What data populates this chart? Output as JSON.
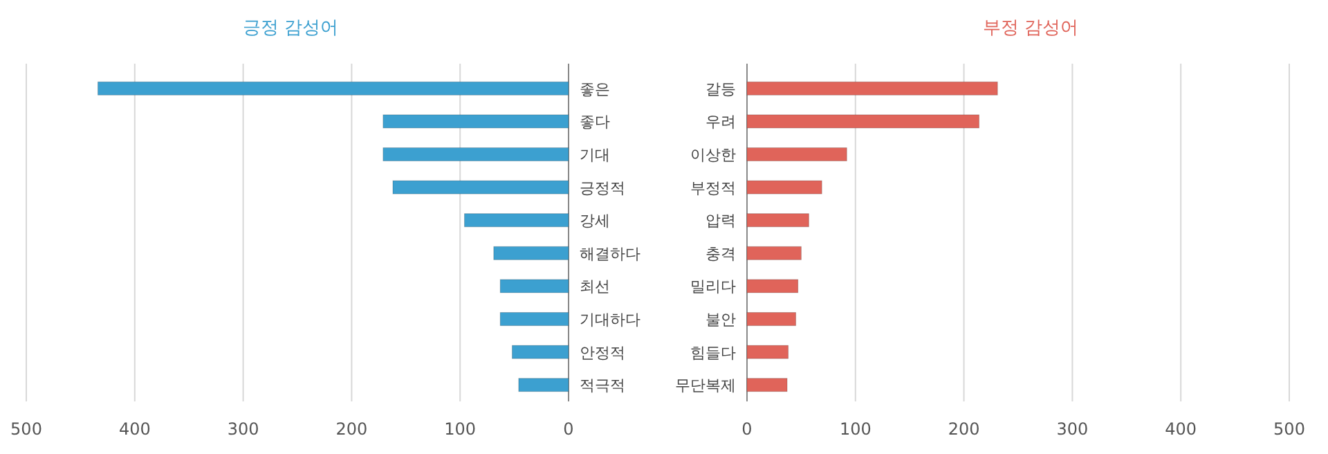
{
  "chart_data": [
    {
      "type": "bar",
      "orientation": "horizontal",
      "title": "긍정 감성어",
      "categories": [
        "좋은",
        "좋다",
        "기대",
        "긍정적",
        "강세",
        "해결하다",
        "최선",
        "기대하다",
        "안정적",
        "적극적"
      ],
      "series": [
        {
          "color": "#3ca0d0",
          "values": [
            434,
            171,
            171,
            162,
            96,
            69,
            63,
            63,
            52,
            46
          ]
        }
      ],
      "xlim": [
        500,
        0
      ],
      "xticks": [
        500,
        400,
        300,
        200,
        100,
        0
      ],
      "grid": "x"
    },
    {
      "type": "bar",
      "orientation": "horizontal",
      "title": "부정 감성어",
      "categories": [
        "갈등",
        "우려",
        "이상한",
        "부정적",
        "압력",
        "충격",
        "밀리다",
        "불안",
        "힘들다",
        "무단복제"
      ],
      "series": [
        {
          "color": "#e0645a",
          "values": [
            231,
            214,
            92,
            69,
            57,
            50,
            47,
            45,
            38,
            37
          ]
        }
      ],
      "xlim": [
        0,
        500
      ],
      "xticks": [
        0,
        100,
        200,
        300,
        400,
        500
      ],
      "grid": "x"
    }
  ]
}
